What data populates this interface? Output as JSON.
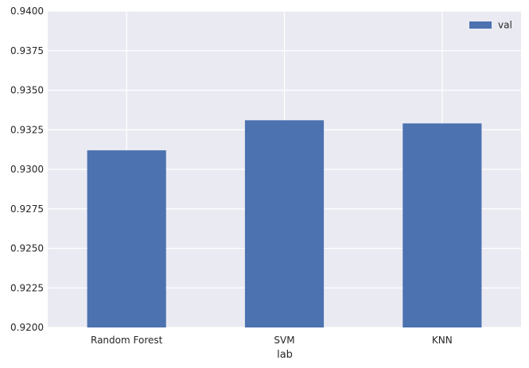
{
  "chart_data": {
    "type": "bar",
    "categories": [
      "Random Forest",
      "SVM",
      "KNN"
    ],
    "series": [
      {
        "name": "val",
        "values": [
          0.9312,
          0.9331,
          0.9329
        ]
      }
    ],
    "xlabel": "lab",
    "ylabel": "",
    "ylim": [
      0.92,
      0.94
    ],
    "yticks": [
      "0.9200",
      "0.9225",
      "0.9250",
      "0.9275",
      "0.9300",
      "0.9325",
      "0.9350",
      "0.9375",
      "0.9400"
    ],
    "grid": true,
    "legend_position": "top-right",
    "colors": {
      "background": "#eaeaf2",
      "grid": "#ffffff",
      "bar": "#4c72b0"
    }
  }
}
